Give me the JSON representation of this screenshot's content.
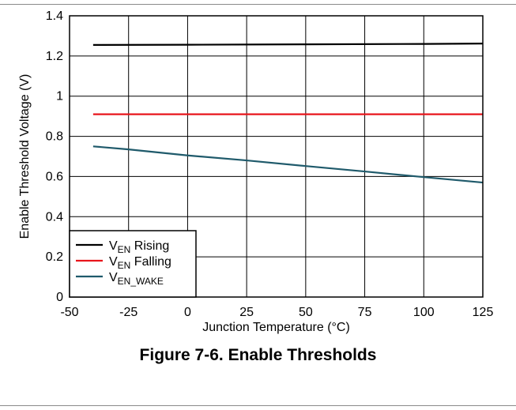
{
  "figure_caption": "Figure 7-6. Enable Thresholds",
  "chart_data": {
    "type": "line",
    "title": "",
    "xlabel": "Junction Temperature (°C)",
    "ylabel": "Enable Threshold Voltage (V)",
    "xlim": [
      -50,
      125
    ],
    "ylim": [
      0,
      1.4
    ],
    "xticks": [
      -50,
      -25,
      0,
      25,
      50,
      75,
      100,
      125
    ],
    "yticks": [
      0,
      0.2,
      0.4,
      0.6,
      0.8,
      1,
      1.2,
      1.4
    ],
    "grid": true,
    "legend_position": "bottom-left",
    "series": [
      {
        "name": "VEN Rising",
        "legend_main": "V",
        "legend_sub": "EN",
        "legend_rest": " Rising",
        "color": "#000000",
        "x": [
          -40,
          0,
          50,
          100,
          125
        ],
        "y": [
          1.255,
          1.256,
          1.258,
          1.26,
          1.262
        ]
      },
      {
        "name": "VEN Falling",
        "legend_main": "V",
        "legend_sub": "EN",
        "legend_rest": " Falling",
        "color": "#e8161c",
        "x": [
          -40,
          0,
          50,
          100,
          125
        ],
        "y": [
          0.91,
          0.91,
          0.91,
          0.91,
          0.91
        ]
      },
      {
        "name": "VEN_WAKE",
        "legend_main": "V",
        "legend_sub": "EN_WAKE",
        "legend_rest": "",
        "color": "#1f5a6b",
        "x": [
          -40,
          -25,
          0,
          25,
          50,
          75,
          100,
          125
        ],
        "y": [
          0.75,
          0.735,
          0.705,
          0.68,
          0.652,
          0.625,
          0.597,
          0.57
        ]
      }
    ]
  }
}
